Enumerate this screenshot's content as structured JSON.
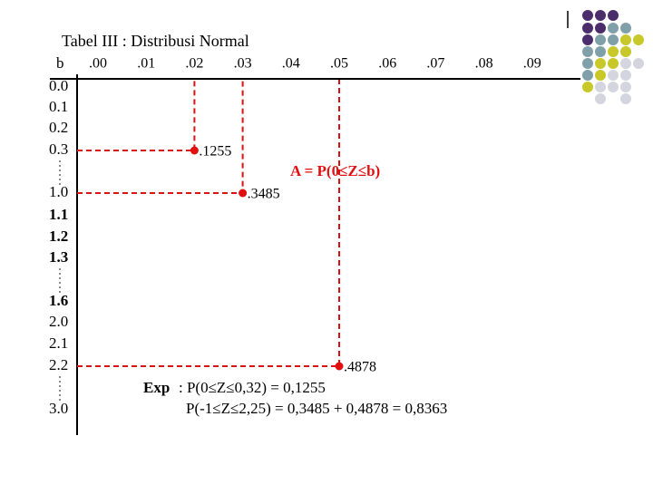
{
  "header": {
    "title": "Tabel III : Distribusi Normal"
  },
  "table": {
    "corner": "b",
    "columns": [
      ".00",
      ".01",
      ".02",
      ".03",
      ".04",
      ".05",
      ".06",
      ".07",
      ".08",
      ".09"
    ],
    "rows": [
      "0.0",
      "0.1",
      "0.2",
      "0.3",
      "1.0",
      "1.1",
      "1.2",
      "1.3",
      "1.6",
      "2.0",
      "2.1",
      "2.2",
      "3.0"
    ]
  },
  "points": [
    {
      "label": ".1255"
    },
    {
      "label": ".3485"
    },
    {
      "label": ".4878"
    }
  ],
  "annotation": "A = P(0≤Z≤b)",
  "example": {
    "prefix": "Exp",
    "line1": ": P(0≤Z≤0,32) = 0,1255",
    "line2": "P(-1≤Z≤2,25) = 0,3485 + 0,4878 = 0,8363"
  }
}
